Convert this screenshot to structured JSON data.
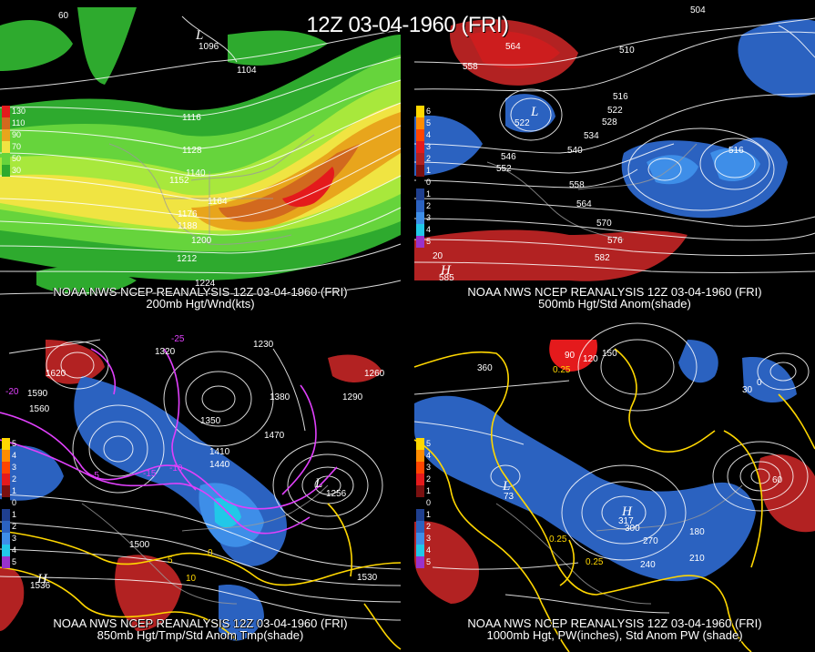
{
  "main_title": "12Z 03-04-1960 (FRI)",
  "panels": {
    "top_left": {
      "caption_1": "NOAA NWS NCEP REANALYSIS 12Z 03-04-1960 (FRI)",
      "caption_2": "200mb Hgt/Wnd(kts)",
      "contour_labels": [
        "1104",
        "1116",
        "1128",
        "1140",
        "1152",
        "1164",
        "1176",
        "1188",
        "1200",
        "1212",
        "1224"
      ],
      "legend": [
        "130",
        "110",
        "90",
        "70",
        "50",
        "30"
      ],
      "legend_colors": [
        "#e41a1c",
        "#d2691e",
        "#e8a51c",
        "#f0e442",
        "#66d43c",
        "#2eaa2e"
      ],
      "extra_labels": {
        "lat": "60",
        "low": "L",
        "low_value": "1096"
      }
    },
    "top_right": {
      "caption_1": "NOAA NWS NCEP REANALYSIS 12Z 03-04-1960 (FRI)",
      "caption_2": "500mb Hgt/Std Anom(shade)",
      "contour_labels": [
        "504",
        "510",
        "516",
        "522",
        "528",
        "534",
        "540",
        "546",
        "552",
        "558",
        "564",
        "570",
        "576",
        "582"
      ],
      "legend": [
        "6",
        "5",
        "4",
        "3",
        "2",
        "1",
        "0",
        "1",
        "2",
        "3",
        "4",
        "5"
      ],
      "legend_colors": [
        "#ffd700",
        "#ff8c00",
        "#ff4500",
        "#e41a1c",
        "#b22222",
        "#7a1010",
        "#000000",
        "#1f3f8f",
        "#2b62c0",
        "#3e8ee8",
        "#21c8e8",
        "#9932cc"
      ],
      "extra_labels": {
        "lat": "20",
        "high": "H",
        "high_value": "585",
        "low": "L",
        "low_value_1": "522",
        "low_value_2": "564",
        "low_value_3": "516"
      }
    },
    "bottom_left": {
      "caption_1": "NOAA NWS NCEP REANALYSIS 12Z 03-04-1960 (FRI)",
      "caption_2": "850mb Hgt/Tmp/Std Anom Tmp(shade)",
      "contour_labels": [
        "1230",
        "1260",
        "1290",
        "1320",
        "1350",
        "1380",
        "1410",
        "1440",
        "1470",
        "1500",
        "1530",
        "1560",
        "1590",
        "1620"
      ],
      "temp_labels": [
        "-25",
        "-20",
        "-15",
        "-10",
        "-5",
        "0",
        "5",
        "10"
      ],
      "legend": [
        "5",
        "4",
        "3",
        "2",
        "1",
        "0",
        "1",
        "2",
        "3",
        "4",
        "5"
      ],
      "legend_colors": [
        "#ffd700",
        "#ff8c00",
        "#ff4500",
        "#e41a1c",
        "#7a1010",
        "#000000",
        "#1f3f8f",
        "#2b62c0",
        "#3e8ee8",
        "#21c8e8",
        "#9932cc"
      ],
      "extra_labels": {
        "high": "H",
        "high_value": "1536",
        "low": "L",
        "low_value": "1256"
      }
    },
    "bottom_right": {
      "caption_1": "NOAA NWS NCEP REANALYSIS 12Z 03-04-1960 (FRI)",
      "caption_2": "1000mb Hgt, PW(inches), Std Anom PW (shade)",
      "contour_labels": [
        "0",
        "30",
        "60",
        "90",
        "120",
        "150",
        "180",
        "210",
        "240",
        "270",
        "300",
        "360"
      ],
      "pw_labels": [
        "0.25",
        "0.25",
        "0.25"
      ],
      "legend": [
        "5",
        "4",
        "3",
        "2",
        "1",
        "0",
        "1",
        "2",
        "3",
        "4",
        "5"
      ],
      "legend_colors": [
        "#ffd700",
        "#ff8c00",
        "#ff4500",
        "#e41a1c",
        "#7a1010",
        "#000000",
        "#1f3f8f",
        "#2b62c0",
        "#3e8ee8",
        "#21c8e8",
        "#9932cc"
      ],
      "extra_labels": {
        "high": "H",
        "high_value": "317",
        "low": "L",
        "low_value": "73"
      }
    }
  }
}
